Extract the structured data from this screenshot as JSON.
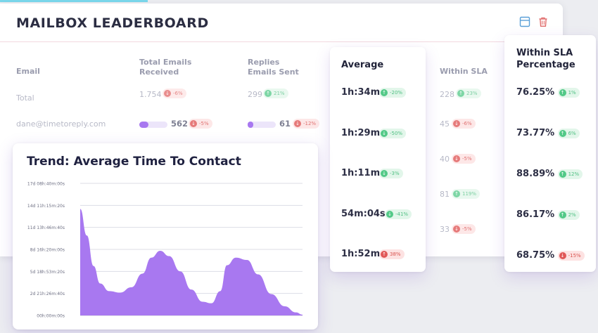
{
  "leaderboard": {
    "title": "MAILBOX LEADERBOARD",
    "columns": {
      "email": "Email",
      "total_received": [
        "Total Emails",
        "Received"
      ],
      "replies_sent": [
        "Replies",
        "Emails Sent"
      ],
      "within_sla": "Within SLA"
    },
    "rows": [
      {
        "email": "Total",
        "received": "1.754",
        "received_change": "-6%",
        "replies": "299",
        "replies_change": "21%",
        "within_sla": "228",
        "within_sla_change": "23%"
      },
      {
        "email": "dane@timetoreply.com",
        "received": "562",
        "received_change": "-5%",
        "received_progress": 0.32,
        "replies": "61",
        "replies_change": "-12%",
        "replies_progress": 0.2,
        "within_sla": "45",
        "within_sla_change": "-6%"
      }
    ],
    "within_sla_extra": [
      {
        "value": "40",
        "change": "-5%",
        "trend": "down"
      },
      {
        "value": "81",
        "change": "119%",
        "trend": "up"
      },
      {
        "value": "33",
        "change": "-5%",
        "trend": "down"
      }
    ],
    "icons": [
      "layout-icon",
      "trash-icon"
    ]
  },
  "average_card": {
    "title": "Average",
    "items": [
      {
        "value": "1h:34m",
        "change": "-20%",
        "style": "green-up"
      },
      {
        "value": "1h:29m",
        "change": "-50%",
        "style": "green-down"
      },
      {
        "value": "1h:11m",
        "change": "-3%",
        "style": "green-down"
      },
      {
        "value": "54m:04s",
        "change": "-41%",
        "style": "green-down"
      },
      {
        "value": "1h:52m",
        "change": "38%",
        "style": "red-up"
      }
    ]
  },
  "sla_card": {
    "title": [
      "Within SLA",
      "Percentage"
    ],
    "items": [
      {
        "value": "76.25%",
        "change": "1%",
        "style": "green-up"
      },
      {
        "value": "73.77%",
        "change": "6%",
        "style": "green-up"
      },
      {
        "value": "88.89%",
        "change": "12%",
        "style": "green-up"
      },
      {
        "value": "86.17%",
        "change": "2%",
        "style": "green-up"
      },
      {
        "value": "68.75%",
        "change": "-15%",
        "style": "red-down"
      }
    ]
  },
  "colors": {
    "accent": "#a878f0",
    "positive": "#52c987",
    "negative": "#e15757",
    "heading": "#2b2d42"
  },
  "chart_data": {
    "type": "area",
    "title": "Trend: Average Time To Contact",
    "y_tick_labels": [
      "17d 08h:40m:00s",
      "14d 11h:15m:20s",
      "11d 13h:46m:40s",
      "8d 16h:20m:00s",
      "5d 18h:53m:20s",
      "2d 21h:26m:40s",
      "00h:00m:00s"
    ],
    "ylim_days": [
      0,
      17.361
    ],
    "points": [
      {
        "x": 0,
        "y": 14.0
      },
      {
        "x": 0.03,
        "y": 10.5
      },
      {
        "x": 0.06,
        "y": 6.5
      },
      {
        "x": 0.09,
        "y": 4.2
      },
      {
        "x": 0.13,
        "y": 3.2
      },
      {
        "x": 0.18,
        "y": 3.0
      },
      {
        "x": 0.23,
        "y": 3.7
      },
      {
        "x": 0.28,
        "y": 5.5
      },
      {
        "x": 0.32,
        "y": 7.6
      },
      {
        "x": 0.36,
        "y": 8.5
      },
      {
        "x": 0.4,
        "y": 7.8
      },
      {
        "x": 0.45,
        "y": 5.8
      },
      {
        "x": 0.5,
        "y": 3.4
      },
      {
        "x": 0.55,
        "y": 1.8
      },
      {
        "x": 0.59,
        "y": 1.6
      },
      {
        "x": 0.63,
        "y": 3.2
      },
      {
        "x": 0.66,
        "y": 6.6
      },
      {
        "x": 0.7,
        "y": 7.6
      },
      {
        "x": 0.75,
        "y": 7.3
      },
      {
        "x": 0.8,
        "y": 5.4
      },
      {
        "x": 0.86,
        "y": 2.8
      },
      {
        "x": 0.92,
        "y": 1.2
      },
      {
        "x": 0.97,
        "y": 0.4
      },
      {
        "x": 1.0,
        "y": 0.1
      }
    ],
    "fill": "#a878f0",
    "grid": true
  }
}
